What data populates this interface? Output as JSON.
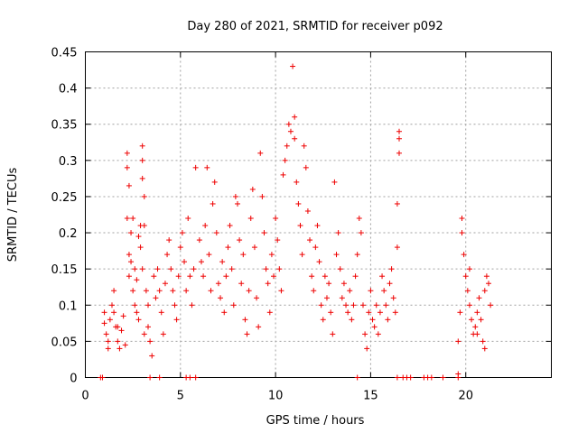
{
  "chart_data": {
    "type": "scatter",
    "title": "Day 280 of 2021, SRMTID for receiver p092",
    "xlabel": "GPS time / hours",
    "ylabel": "SRMTID / TECUs",
    "xlim": [
      0,
      24.5
    ],
    "ylim": [
      0,
      0.45
    ],
    "xticks": [
      0,
      5,
      10,
      15,
      20
    ],
    "xtick_labels": [
      "0",
      "5",
      "10",
      "15",
      "20"
    ],
    "yticks": [
      0,
      0.05,
      0.1,
      0.15,
      0.2,
      0.25,
      0.3,
      0.35,
      0.4,
      0.45
    ],
    "ytick_labels": [
      "0",
      "0.05",
      "0.1",
      "0.15",
      "0.2",
      "0.25",
      "0.3",
      "0.35",
      "0.4",
      "0.45"
    ],
    "grid": true,
    "marker": "+",
    "series_color": "#ee0000",
    "series": [
      {
        "name": "SRMTID",
        "points": [
          [
            0.8,
            0.0
          ],
          [
            0.9,
            0.0
          ],
          [
            3.4,
            0.0
          ],
          [
            3.9,
            0.0
          ],
          [
            5.3,
            0.0
          ],
          [
            5.5,
            0.0
          ],
          [
            5.8,
            0.0
          ],
          [
            14.3,
            0.0
          ],
          [
            16.4,
            0.0
          ],
          [
            16.7,
            0.0
          ],
          [
            16.9,
            0.0
          ],
          [
            17.1,
            0.0
          ],
          [
            17.8,
            0.0
          ],
          [
            18.0,
            0.0
          ],
          [
            18.2,
            0.0
          ],
          [
            18.8,
            0.0
          ],
          [
            19.6,
            0.0
          ],
          [
            19.6,
            0.005
          ],
          [
            1.0,
            0.09
          ],
          [
            1.1,
            0.06
          ],
          [
            1.2,
            0.05
          ],
          [
            1.3,
            0.08
          ],
          [
            1.4,
            0.1
          ],
          [
            1.5,
            0.12
          ],
          [
            1.6,
            0.07
          ],
          [
            1.7,
            0.05
          ],
          [
            1.8,
            0.04
          ],
          [
            1.9,
            0.065
          ],
          [
            2.0,
            0.085
          ],
          [
            2.1,
            0.045
          ],
          [
            1.0,
            0.075
          ],
          [
            1.2,
            0.04
          ],
          [
            1.5,
            0.09
          ],
          [
            1.7,
            0.07
          ],
          [
            2.2,
            0.31
          ],
          [
            2.2,
            0.29
          ],
          [
            2.2,
            0.22
          ],
          [
            2.3,
            0.17
          ],
          [
            2.3,
            0.14
          ],
          [
            2.4,
            0.16
          ],
          [
            2.4,
            0.2
          ],
          [
            2.5,
            0.12
          ],
          [
            2.6,
            0.1
          ],
          [
            2.7,
            0.09
          ],
          [
            2.8,
            0.08
          ],
          [
            2.9,
            0.21
          ],
          [
            2.9,
            0.18
          ],
          [
            3.0,
            0.15
          ],
          [
            3.0,
            0.32
          ],
          [
            3.0,
            0.3
          ],
          [
            3.1,
            0.25
          ],
          [
            3.1,
            0.21
          ],
          [
            3.2,
            0.12
          ],
          [
            3.3,
            0.1
          ],
          [
            3.3,
            0.07
          ],
          [
            3.4,
            0.05
          ],
          [
            3.5,
            0.03
          ],
          [
            3.1,
            0.06
          ],
          [
            2.5,
            0.22
          ],
          [
            2.3,
            0.265
          ],
          [
            2.8,
            0.195
          ],
          [
            3.0,
            0.275
          ],
          [
            2.7,
            0.135
          ],
          [
            2.6,
            0.15
          ],
          [
            3.6,
            0.14
          ],
          [
            3.7,
            0.11
          ],
          [
            3.8,
            0.15
          ],
          [
            3.9,
            0.12
          ],
          [
            4.0,
            0.09
          ],
          [
            4.1,
            0.06
          ],
          [
            4.2,
            0.13
          ],
          [
            4.3,
            0.17
          ],
          [
            4.4,
            0.19
          ],
          [
            4.5,
            0.15
          ],
          [
            4.6,
            0.12
          ],
          [
            4.7,
            0.1
          ],
          [
            4.8,
            0.08
          ],
          [
            4.9,
            0.14
          ],
          [
            5.0,
            0.18
          ],
          [
            5.1,
            0.2
          ],
          [
            5.2,
            0.16
          ],
          [
            5.3,
            0.12
          ],
          [
            5.4,
            0.22
          ],
          [
            5.5,
            0.14
          ],
          [
            5.6,
            0.1
          ],
          [
            5.7,
            0.15
          ],
          [
            5.8,
            0.29
          ],
          [
            6.0,
            0.19
          ],
          [
            6.1,
            0.16
          ],
          [
            6.2,
            0.14
          ],
          [
            6.3,
            0.21
          ],
          [
            6.4,
            0.29
          ],
          [
            6.5,
            0.17
          ],
          [
            6.6,
            0.12
          ],
          [
            6.7,
            0.24
          ],
          [
            6.8,
            0.27
          ],
          [
            6.9,
            0.2
          ],
          [
            7.0,
            0.13
          ],
          [
            7.1,
            0.11
          ],
          [
            7.2,
            0.16
          ],
          [
            7.3,
            0.09
          ],
          [
            7.4,
            0.14
          ],
          [
            7.5,
            0.18
          ],
          [
            7.6,
            0.21
          ],
          [
            7.7,
            0.15
          ],
          [
            7.8,
            0.1
          ],
          [
            7.9,
            0.25
          ],
          [
            8.0,
            0.24
          ],
          [
            8.1,
            0.19
          ],
          [
            8.2,
            0.13
          ],
          [
            8.3,
            0.17
          ],
          [
            8.4,
            0.08
          ],
          [
            8.5,
            0.06
          ],
          [
            8.6,
            0.12
          ],
          [
            8.7,
            0.22
          ],
          [
            8.8,
            0.26
          ],
          [
            8.9,
            0.18
          ],
          [
            9.0,
            0.11
          ],
          [
            9.1,
            0.07
          ],
          [
            9.2,
            0.31
          ],
          [
            9.3,
            0.25
          ],
          [
            9.4,
            0.2
          ],
          [
            9.5,
            0.15
          ],
          [
            9.6,
            0.13
          ],
          [
            9.7,
            0.09
          ],
          [
            9.8,
            0.17
          ],
          [
            9.9,
            0.14
          ],
          [
            10.0,
            0.22
          ],
          [
            10.1,
            0.19
          ],
          [
            10.2,
            0.15
          ],
          [
            10.3,
            0.12
          ],
          [
            10.4,
            0.28
          ],
          [
            10.5,
            0.3
          ],
          [
            10.6,
            0.32
          ],
          [
            10.7,
            0.35
          ],
          [
            10.8,
            0.34
          ],
          [
            10.9,
            0.43
          ],
          [
            11.0,
            0.36
          ],
          [
            11.0,
            0.33
          ],
          [
            11.1,
            0.27
          ],
          [
            11.2,
            0.24
          ],
          [
            11.3,
            0.21
          ],
          [
            11.4,
            0.17
          ],
          [
            11.5,
            0.32
          ],
          [
            11.6,
            0.29
          ],
          [
            11.7,
            0.23
          ],
          [
            11.8,
            0.19
          ],
          [
            11.9,
            0.14
          ],
          [
            12.0,
            0.12
          ],
          [
            12.1,
            0.18
          ],
          [
            12.2,
            0.21
          ],
          [
            12.3,
            0.16
          ],
          [
            12.4,
            0.1
          ],
          [
            12.5,
            0.08
          ],
          [
            12.6,
            0.14
          ],
          [
            12.7,
            0.11
          ],
          [
            12.8,
            0.13
          ],
          [
            12.9,
            0.09
          ],
          [
            13.0,
            0.06
          ],
          [
            13.1,
            0.27
          ],
          [
            13.2,
            0.17
          ],
          [
            13.3,
            0.2
          ],
          [
            13.4,
            0.15
          ],
          [
            13.5,
            0.11
          ],
          [
            13.6,
            0.13
          ],
          [
            13.7,
            0.1
          ],
          [
            13.8,
            0.09
          ],
          [
            13.9,
            0.12
          ],
          [
            14.0,
            0.08
          ],
          [
            14.1,
            0.1
          ],
          [
            14.2,
            0.14
          ],
          [
            14.3,
            0.17
          ],
          [
            14.4,
            0.22
          ],
          [
            14.5,
            0.2
          ],
          [
            14.6,
            0.1
          ],
          [
            14.7,
            0.06
          ],
          [
            14.8,
            0.04
          ],
          [
            14.9,
            0.09
          ],
          [
            15.0,
            0.12
          ],
          [
            15.1,
            0.08
          ],
          [
            15.2,
            0.07
          ],
          [
            15.3,
            0.1
          ],
          [
            15.4,
            0.06
          ],
          [
            15.5,
            0.09
          ],
          [
            15.6,
            0.14
          ],
          [
            15.7,
            0.12
          ],
          [
            15.8,
            0.1
          ],
          [
            15.9,
            0.08
          ],
          [
            16.0,
            0.13
          ],
          [
            16.1,
            0.15
          ],
          [
            16.2,
            0.11
          ],
          [
            16.3,
            0.09
          ],
          [
            16.5,
            0.34
          ],
          [
            16.5,
            0.33
          ],
          [
            16.5,
            0.31
          ],
          [
            16.4,
            0.24
          ],
          [
            16.4,
            0.18
          ],
          [
            19.6,
            0.05
          ],
          [
            19.7,
            0.09
          ],
          [
            19.8,
            0.22
          ],
          [
            19.8,
            0.2
          ],
          [
            19.9,
            0.17
          ],
          [
            20.0,
            0.14
          ],
          [
            20.1,
            0.12
          ],
          [
            20.2,
            0.1
          ],
          [
            20.3,
            0.08
          ],
          [
            20.4,
            0.06
          ],
          [
            20.5,
            0.07
          ],
          [
            20.6,
            0.09
          ],
          [
            20.7,
            0.11
          ],
          [
            20.8,
            0.08
          ],
          [
            20.9,
            0.05
          ],
          [
            21.0,
            0.12
          ],
          [
            21.1,
            0.14
          ],
          [
            21.2,
            0.13
          ],
          [
            21.3,
            0.1
          ],
          [
            20.2,
            0.15
          ],
          [
            20.6,
            0.06
          ],
          [
            21.0,
            0.04
          ]
        ]
      }
    ]
  }
}
